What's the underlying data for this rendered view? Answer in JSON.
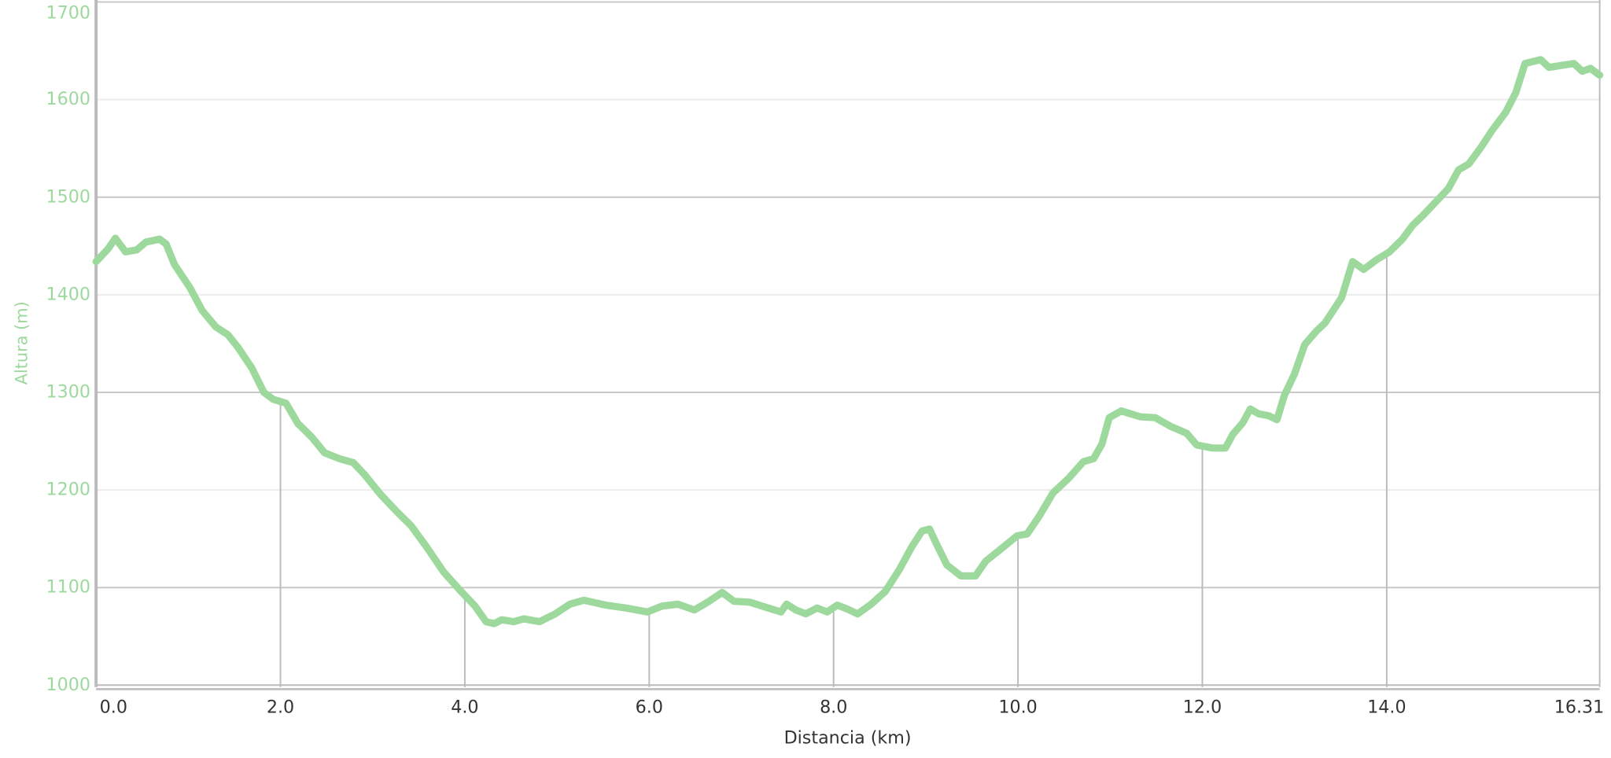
{
  "chart_data": {
    "type": "line",
    "x_label": "Distancia (km)",
    "y_label": "Altura (m)",
    "color": "#9dd99d",
    "x": [
      0.0,
      0.13,
      0.21,
      0.32,
      0.44,
      0.54,
      0.69,
      0.76,
      0.85,
      1.02,
      1.15,
      1.3,
      1.43,
      1.54,
      1.69,
      1.82,
      1.92,
      2.06,
      2.19,
      2.34,
      2.48,
      2.64,
      2.79,
      2.91,
      3.08,
      3.25,
      3.42,
      3.59,
      3.77,
      3.95,
      4.11,
      4.23,
      4.32,
      4.4,
      4.53,
      4.64,
      4.81,
      4.98,
      5.14,
      5.29,
      5.53,
      5.75,
      5.98,
      6.14,
      6.31,
      6.49,
      6.65,
      6.79,
      6.92,
      7.09,
      7.26,
      7.43,
      7.49,
      7.59,
      7.7,
      7.82,
      7.93,
      8.04,
      8.15,
      8.26,
      8.41,
      8.56,
      8.71,
      8.85,
      8.96,
      9.04,
      9.12,
      9.23,
      9.38,
      9.54,
      9.65,
      9.82,
      9.99,
      10.1,
      10.23,
      10.38,
      10.55,
      10.71,
      10.82,
      10.91,
      10.99,
      11.12,
      11.33,
      11.49,
      11.66,
      11.83,
      11.94,
      12.11,
      12.25,
      12.33,
      12.44,
      12.52,
      12.61,
      12.72,
      12.81,
      12.89,
      13.0,
      13.11,
      13.24,
      13.33,
      13.42,
      13.51,
      13.63,
      13.75,
      13.89,
      14.03,
      14.17,
      14.28,
      14.39,
      14.54,
      14.67,
      14.78,
      14.89,
      15.03,
      15.14,
      15.29,
      15.4,
      15.5,
      15.67,
      15.76,
      15.89,
      16.03,
      16.12,
      16.21,
      16.31
    ],
    "values": [
      1434,
      1447,
      1458,
      1444,
      1446,
      1454,
      1457,
      1452,
      1431,
      1407,
      1384,
      1367,
      1359,
      1346,
      1325,
      1300,
      1293,
      1289,
      1268,
      1254,
      1238,
      1232,
      1228,
      1216,
      1196,
      1179,
      1163,
      1141,
      1116,
      1097,
      1081,
      1065,
      1063,
      1067,
      1065,
      1068,
      1065,
      1073,
      1083,
      1087,
      1082,
      1079,
      1075,
      1081,
      1083,
      1077,
      1086,
      1095,
      1086,
      1085,
      1080,
      1075,
      1083,
      1077,
      1073,
      1079,
      1075,
      1082,
      1078,
      1073,
      1083,
      1096,
      1118,
      1142,
      1158,
      1160,
      1144,
      1123,
      1112,
      1112,
      1127,
      1140,
      1153,
      1155,
      1173,
      1197,
      1212,
      1229,
      1232,
      1247,
      1274,
      1281,
      1275,
      1274,
      1265,
      1258,
      1246,
      1243,
      1243,
      1257,
      1269,
      1283,
      1278,
      1276,
      1272,
      1297,
      1319,
      1349,
      1363,
      1371,
      1384,
      1397,
      1434,
      1426,
      1436,
      1444,
      1457,
      1471,
      1481,
      1496,
      1509,
      1528,
      1534,
      1552,
      1568,
      1587,
      1607,
      1637,
      1641,
      1633,
      1635,
      1637,
      1629,
      1632,
      1625
    ],
    "xlim": [
      0,
      16.31
    ],
    "ylim": [
      998,
      1702
    ],
    "xticks": [
      {
        "value": 0,
        "label": "0.0"
      },
      {
        "value": 2,
        "label": "2.0"
      },
      {
        "value": 4,
        "label": "4.0"
      },
      {
        "value": 6,
        "label": "6.0"
      },
      {
        "value": 8,
        "label": "8.0"
      },
      {
        "value": 10,
        "label": "10.0"
      },
      {
        "value": 12,
        "label": "12.0"
      },
      {
        "value": 14,
        "label": "14.0"
      },
      16.31
    ],
    "yticks": [
      1000,
      1100,
      1200,
      1300,
      1400,
      1500,
      1600,
      1700
    ],
    "grid": true
  }
}
